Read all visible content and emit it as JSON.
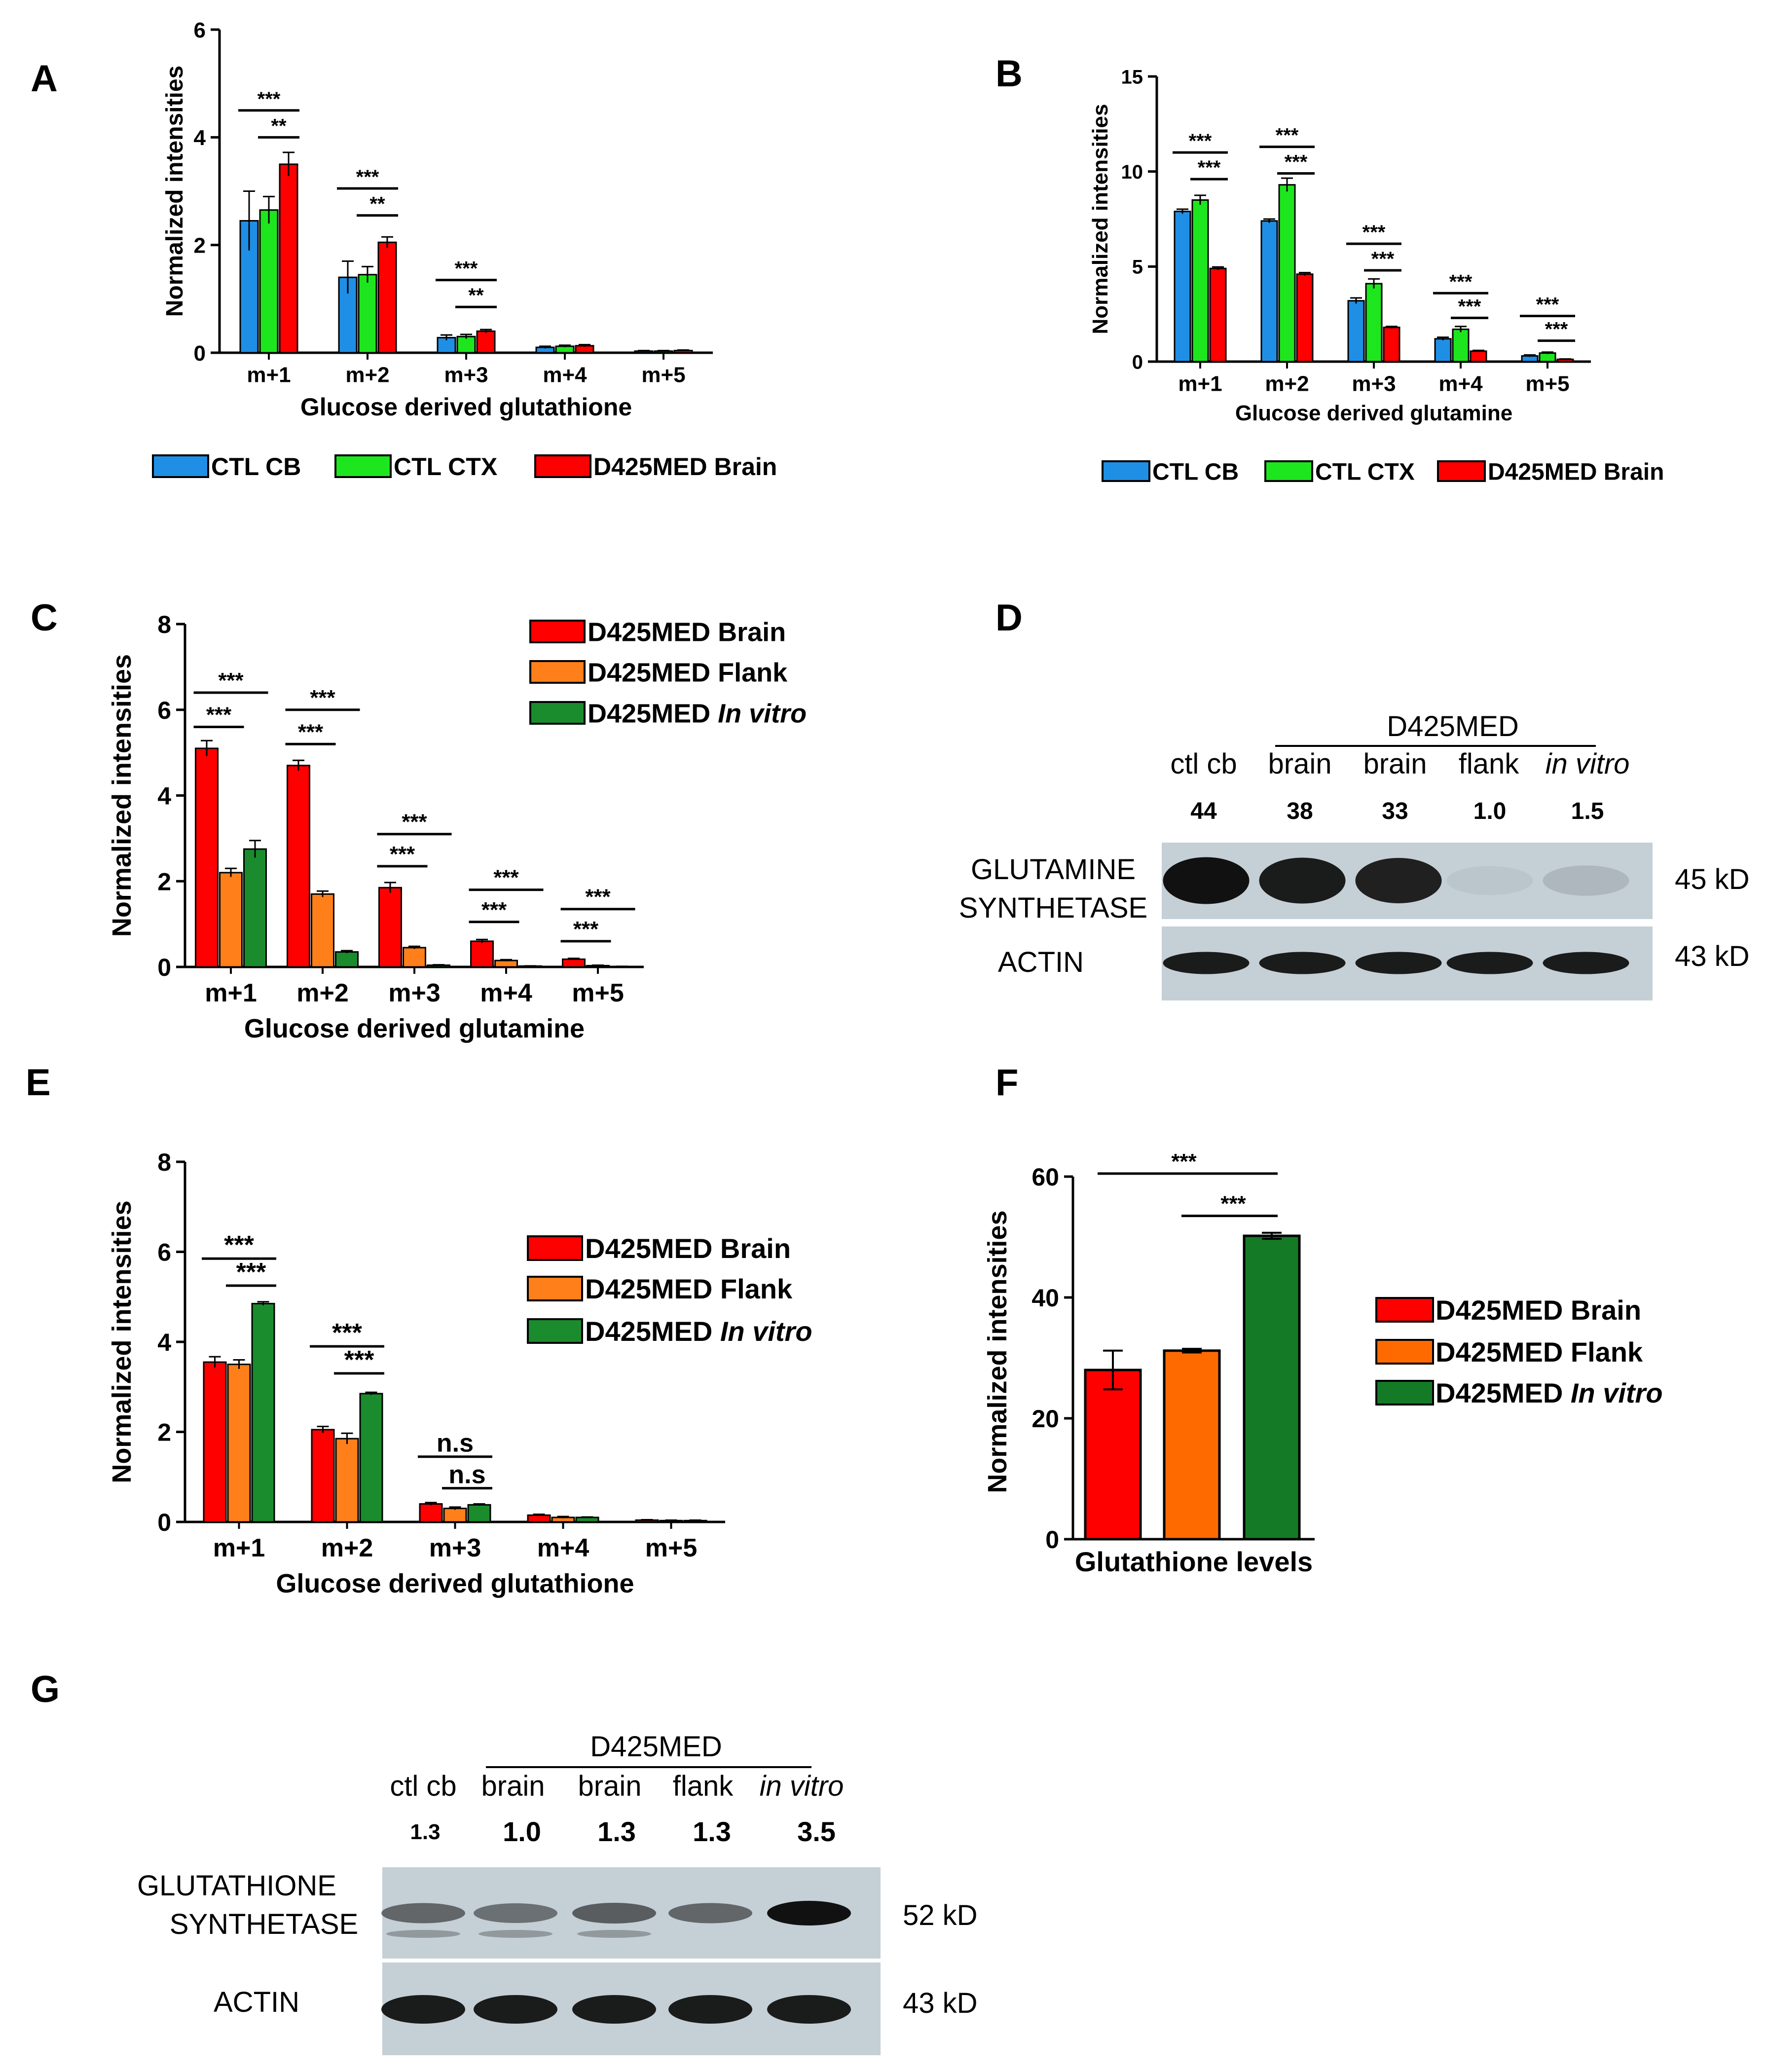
{
  "colors": {
    "blue": "#1f8fe6",
    "green": "#1ee61e",
    "red": "#ff0000",
    "orange": "#ff7f1a",
    "dkgreen": "#1a8c2e",
    "orange_f": "#ff6a00",
    "dkgreen_f": "#157a25",
    "blot_bg": "#c5cfd6",
    "band": "#1a1a1a"
  },
  "chart_data": [
    {
      "panel": "A",
      "type": "bar",
      "title": "",
      "xlabel": "Glucose derived glutathione",
      "ylabel": "Normalized intensities",
      "ylim": [
        0,
        6
      ],
      "yticks": [
        0,
        2,
        4,
        6
      ],
      "yticklabels": [
        "0",
        "2",
        "4",
        "6"
      ],
      "categories": [
        "m+1",
        "m+2",
        "m+3",
        "m+4",
        "m+5"
      ],
      "series": [
        {
          "name": "CTL CB",
          "color": "#1f8fe6",
          "values": [
            2.45,
            1.4,
            0.28,
            0.1,
            0.03
          ],
          "errors": [
            0.55,
            0.3,
            0.05,
            0.02,
            0.01
          ]
        },
        {
          "name": "CTL CTX",
          "color": "#1ee61e",
          "values": [
            2.65,
            1.45,
            0.3,
            0.12,
            0.03
          ],
          "errors": [
            0.25,
            0.15,
            0.04,
            0.02,
            0.01
          ]
        },
        {
          "name": "D425MED Brain",
          "color": "#ff0000",
          "values": [
            3.5,
            2.05,
            0.4,
            0.13,
            0.04
          ],
          "errors": [
            0.22,
            0.1,
            0.03,
            0.02,
            0.01
          ]
        }
      ],
      "legend": [
        "CTL CB",
        "CTL CTX",
        "D425MED Brain"
      ],
      "legend_placement": "bottom",
      "significance": [
        {
          "group": 0,
          "label": "***",
          "from": 0,
          "to": 2,
          "level": 4.5
        },
        {
          "group": 0,
          "label": "**",
          "from": 1,
          "to": 2,
          "level": 4.0
        },
        {
          "group": 1,
          "label": "***",
          "from": 0,
          "to": 2,
          "level": 3.05
        },
        {
          "group": 1,
          "label": "**",
          "from": 1,
          "to": 2,
          "level": 2.55
        },
        {
          "group": 2,
          "label": "***",
          "from": 0,
          "to": 2,
          "level": 1.35
        },
        {
          "group": 2,
          "label": "**",
          "from": 1,
          "to": 2,
          "level": 0.85
        }
      ]
    },
    {
      "panel": "B",
      "type": "bar",
      "title": "",
      "xlabel": "Glucose derived glutamine",
      "ylabel": "Normalized intensities",
      "ylim": [
        0,
        15
      ],
      "yticks": [
        0,
        5,
        10,
        15
      ],
      "yticklabels": [
        "0",
        "5",
        "10",
        "15"
      ],
      "categories": [
        "m+1",
        "m+2",
        "m+3",
        "m+4",
        "m+5"
      ],
      "series": [
        {
          "name": "CTL CB",
          "color": "#1f8fe6",
          "values": [
            7.9,
            7.4,
            3.2,
            1.2,
            0.3
          ],
          "errors": [
            0.12,
            0.1,
            0.15,
            0.08,
            0.05
          ]
        },
        {
          "name": "CTL CTX",
          "color": "#1ee61e",
          "values": [
            8.5,
            9.3,
            4.1,
            1.7,
            0.45
          ],
          "errors": [
            0.25,
            0.35,
            0.25,
            0.15,
            0.05
          ]
        },
        {
          "name": "D425MED Brain",
          "color": "#ff0000",
          "values": [
            4.9,
            4.6,
            1.8,
            0.55,
            0.12
          ],
          "errors": [
            0.08,
            0.08,
            0.05,
            0.04,
            0.02
          ]
        }
      ],
      "legend": [
        "CTL CB",
        "CTL CTX",
        "D425MED Brain"
      ],
      "legend_placement": "bottom",
      "significance": [
        {
          "group": 0,
          "label": "***",
          "from": 0,
          "to": 2,
          "level": 11.0
        },
        {
          "group": 0,
          "label": "***",
          "from": 1,
          "to": 2,
          "level": 9.6
        },
        {
          "group": 1,
          "label": "***",
          "from": 0,
          "to": 2,
          "level": 11.3
        },
        {
          "group": 1,
          "label": "***",
          "from": 1,
          "to": 2,
          "level": 9.9
        },
        {
          "group": 2,
          "label": "***",
          "from": 0,
          "to": 2,
          "level": 6.2
        },
        {
          "group": 2,
          "label": "***",
          "from": 1,
          "to": 2,
          "level": 4.8
        },
        {
          "group": 3,
          "label": "***",
          "from": 0,
          "to": 2,
          "level": 3.6
        },
        {
          "group": 3,
          "label": "***",
          "from": 1,
          "to": 2,
          "level": 2.3
        },
        {
          "group": 4,
          "label": "***",
          "from": 0,
          "to": 2,
          "level": 2.4
        },
        {
          "group": 4,
          "label": "***",
          "from": 1,
          "to": 2,
          "level": 1.1
        }
      ]
    },
    {
      "panel": "C",
      "type": "bar",
      "title": "",
      "xlabel": "Glucose derived glutamine",
      "ylabel": "Normalized intensities",
      "ylim": [
        0,
        8
      ],
      "yticks": [
        0,
        2,
        4,
        6,
        8
      ],
      "yticklabels": [
        "0",
        "2",
        "4",
        "6",
        "8"
      ],
      "categories": [
        "m+1",
        "m+2",
        "m+3",
        "m+4",
        "m+5"
      ],
      "series": [
        {
          "name": "D425MED Brain",
          "color": "#ff0000",
          "values": [
            5.1,
            4.7,
            1.85,
            0.6,
            0.18
          ],
          "errors": [
            0.18,
            0.12,
            0.12,
            0.04,
            0.02
          ]
        },
        {
          "name": "D425MED Flank",
          "color": "#ff7f1a",
          "values": [
            2.2,
            1.7,
            0.45,
            0.15,
            0.03
          ],
          "errors": [
            0.1,
            0.07,
            0.03,
            0.02,
            0.01
          ]
        },
        {
          "name": "D425MED In vitro",
          "color": "#1a8c2e",
          "values": [
            2.75,
            0.35,
            0.04,
            0.02,
            0.01
          ],
          "errors": [
            0.2,
            0.03,
            0.01,
            0.005,
            0.005
          ]
        }
      ],
      "legend": [
        "D425MED Brain",
        "D425MED Flank",
        "D425MED In vitro"
      ],
      "legend_placement": "top-right",
      "significance": [
        {
          "group": 0,
          "label": "***",
          "from": 0,
          "to": 2,
          "level": 6.4
        },
        {
          "group": 0,
          "label": "***",
          "from": 0,
          "to": 1,
          "level": 5.6
        },
        {
          "group": 1,
          "label": "***",
          "from": 0,
          "to": 2,
          "level": 6.0
        },
        {
          "group": 1,
          "label": "***",
          "from": 0,
          "to": 1,
          "level": 5.2
        },
        {
          "group": 2,
          "label": "***",
          "from": 0,
          "to": 2,
          "level": 3.1
        },
        {
          "group": 2,
          "label": "***",
          "from": 0,
          "to": 1,
          "level": 2.35
        },
        {
          "group": 3,
          "label": "***",
          "from": 0,
          "to": 2,
          "level": 1.8
        },
        {
          "group": 3,
          "label": "***",
          "from": 0,
          "to": 1,
          "level": 1.05
        },
        {
          "group": 4,
          "label": "***",
          "from": 0,
          "to": 2,
          "level": 1.35
        },
        {
          "group": 4,
          "label": "***",
          "from": 0,
          "to": 1,
          "level": 0.6
        }
      ]
    },
    {
      "panel": "E",
      "type": "bar",
      "title": "",
      "xlabel": "Glucose derived glutathione",
      "ylabel": "Normalized intensities",
      "ylim": [
        0,
        8
      ],
      "yticks": [
        0,
        2,
        4,
        6,
        8
      ],
      "yticklabels": [
        "0",
        "2",
        "4",
        "6",
        "8"
      ],
      "categories": [
        "m+1",
        "m+2",
        "m+3",
        "m+4",
        "m+5"
      ],
      "series": [
        {
          "name": "D425MED Brain",
          "color": "#ff0000",
          "values": [
            3.55,
            2.05,
            0.4,
            0.15,
            0.04
          ],
          "errors": [
            0.12,
            0.07,
            0.03,
            0.02,
            0.01
          ]
        },
        {
          "name": "D425MED Flank",
          "color": "#ff7f1a",
          "values": [
            3.5,
            1.85,
            0.3,
            0.1,
            0.03
          ],
          "errors": [
            0.1,
            0.12,
            0.03,
            0.02,
            0.01
          ]
        },
        {
          "name": "D425MED In vitro",
          "color": "#1a8c2e",
          "values": [
            4.85,
            2.85,
            0.38,
            0.1,
            0.03
          ],
          "errors": [
            0.04,
            0.03,
            0.02,
            0.01,
            0.01
          ]
        }
      ],
      "legend": [
        "D425MED Brain",
        "D425MED Flank",
        "D425MED In vitro"
      ],
      "legend_placement": "right",
      "significance": [
        {
          "group": 0,
          "label": "***",
          "from": 0,
          "to": 2,
          "level": 5.85
        },
        {
          "group": 0,
          "label": "***",
          "from": 1,
          "to": 2,
          "level": 5.25
        },
        {
          "group": 1,
          "label": "***",
          "from": 0,
          "to": 2,
          "level": 3.9
        },
        {
          "group": 1,
          "label": "***",
          "from": 1,
          "to": 2,
          "level": 3.3
        },
        {
          "group": 2,
          "label": "n.s",
          "from": 0,
          "to": 2,
          "level": 1.45
        },
        {
          "group": 2,
          "label": "n.s",
          "from": 1,
          "to": 2,
          "level": 0.75
        }
      ]
    },
    {
      "panel": "F",
      "type": "bar",
      "title": "",
      "xlabel": "Glutathione levels",
      "ylabel": "Normalized intensities",
      "ylim": [
        0,
        60
      ],
      "yticks": [
        0,
        20,
        40,
        60
      ],
      "yticklabels": [
        "0",
        "20",
        "40",
        "60"
      ],
      "categories": [
        "D425MED Brain",
        "D425MED Flank",
        "D425MED In vitro"
      ],
      "values": [
        28.0,
        31.2,
        50.2
      ],
      "errors": [
        3.2,
        0.3,
        0.5
      ],
      "colors": [
        "#ff0000",
        "#ff6a00",
        "#157a25"
      ],
      "legend": [
        "D425MED Brain",
        "D425MED Flank",
        "D425MED In vitro"
      ],
      "legend_placement": "right",
      "significance": [
        {
          "label": "***",
          "from": 0,
          "to": 2,
          "level": 60.5
        },
        {
          "label": "***",
          "from": 1,
          "to": 2,
          "level": 53.5
        }
      ]
    }
  ],
  "panel_labels": {
    "A": "A",
    "B": "B",
    "C": "C",
    "D": "D",
    "E": "E",
    "F": "F",
    "G": "G"
  },
  "blot_d": {
    "group_label": "D425MED",
    "lanes": [
      "ctl cb",
      "brain",
      "brain",
      "flank",
      "in vitro"
    ],
    "quant": [
      "44",
      "38",
      "33",
      "1.0",
      "1.5"
    ],
    "protein_line1": "GLUTAMINE",
    "protein_line2": "SYNTHETASE",
    "protein_kd": "45 kD",
    "loading": "ACTIN",
    "loading_kd": "43 kD",
    "band_intensity": [
      1.0,
      0.95,
      0.92,
      0.04,
      0.12
    ]
  },
  "blot_g": {
    "group_label": "D425MED",
    "lanes": [
      "ctl cb",
      "brain",
      "brain",
      "flank",
      "in vitro"
    ],
    "quant": [
      "1.3",
      "1.0",
      "1.3",
      "1.3",
      "3.5"
    ],
    "protein_line1": "GLUTATHIONE",
    "protein_line2": "SYNTHETASE",
    "protein_kd": "52 kD",
    "loading": "ACTIN",
    "loading_kd": "43 kD",
    "band_intensity": [
      0.55,
      0.5,
      0.6,
      0.55,
      1.0
    ]
  }
}
